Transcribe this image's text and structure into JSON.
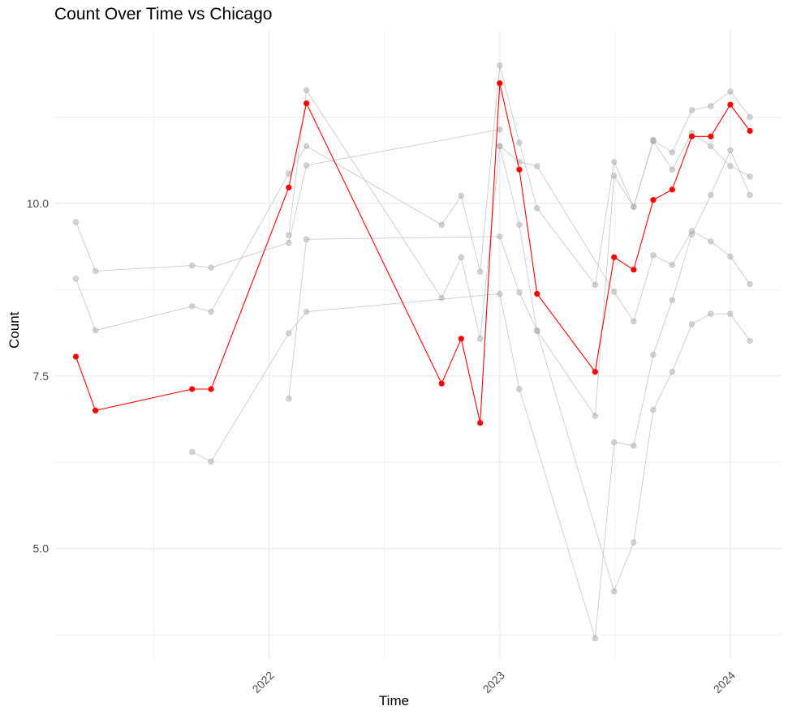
{
  "chart_data": {
    "type": "line",
    "title": "Count Over Time vs Chicago",
    "xlabel": "Time",
    "ylabel": "Count",
    "x_ticks": [
      {
        "date": "2022-01-01",
        "label": "2022"
      },
      {
        "date": "2023-01-01",
        "label": "2023"
      },
      {
        "date": "2024-01-01",
        "label": "2024"
      }
    ],
    "y_ticks": [
      5.0,
      7.5,
      10.0
    ],
    "y_tick_labels": [
      "5.0",
      "7.5",
      "10.0"
    ],
    "xlim": [
      "2021-01-26",
      "2024-03-22"
    ],
    "ylim": [
      3.4,
      12.5
    ],
    "grid": true,
    "colors": {
      "highlight": "#ff0000",
      "others": "#bdbdbd",
      "grid": "#ebebeb"
    },
    "highlight_series": {
      "values": [
        [
          "2021-03-01",
          7.78
        ],
        [
          "2021-04-01",
          7.0
        ],
        [
          "2021-09-01",
          7.31
        ],
        [
          "2021-10-01",
          7.31
        ],
        [
          "2022-02-01",
          10.23
        ],
        [
          "2022-03-01",
          11.45
        ],
        [
          "2022-10-01",
          7.39
        ],
        [
          "2022-11-01",
          8.04
        ],
        [
          "2022-12-01",
          6.82
        ],
        [
          "2023-01-01",
          11.74
        ],
        [
          "2023-02-01",
          10.49
        ],
        [
          "2023-03-01",
          8.69
        ],
        [
          "2023-06-01",
          7.56
        ],
        [
          "2023-07-01",
          9.22
        ],
        [
          "2023-08-01",
          9.04
        ],
        [
          "2023-09-01",
          10.05
        ],
        [
          "2023-10-01",
          10.2
        ],
        [
          "2023-11-01",
          10.97
        ],
        [
          "2023-12-01",
          10.97
        ],
        [
          "2024-01-01",
          11.43
        ],
        [
          "2024-02-01",
          11.05
        ]
      ]
    },
    "series": [
      {
        "values": [
          [
            "2021-03-01",
            9.73
          ],
          [
            "2021-04-01",
            9.02
          ],
          [
            "2021-09-01",
            9.1
          ],
          [
            "2021-10-01",
            9.07
          ],
          [
            "2022-02-01",
            9.43
          ],
          [
            "2022-03-01",
            10.55
          ],
          [
            "2023-01-01",
            11.07
          ]
        ]
      },
      {
        "values": [
          [
            "2021-03-01",
            8.91
          ],
          [
            "2021-04-01",
            8.16
          ],
          [
            "2021-09-01",
            8.51
          ],
          [
            "2021-10-01",
            8.43
          ],
          [
            "2022-02-01",
            10.43
          ],
          [
            "2022-03-01",
            10.83
          ],
          [
            "2022-10-01",
            9.69
          ],
          [
            "2022-11-01",
            10.11
          ],
          [
            "2022-12-01",
            9.01
          ],
          [
            "2023-01-01",
            12.0
          ],
          [
            "2023-02-01",
            10.88
          ],
          [
            "2023-03-01",
            9.93
          ],
          [
            "2023-06-01",
            8.82
          ],
          [
            "2023-07-01",
            10.6
          ],
          [
            "2023-08-01",
            9.95
          ],
          [
            "2023-09-01",
            10.92
          ]
        ]
      },
      {
        "values": [
          [
            "2021-09-01",
            6.4
          ],
          [
            "2021-10-01",
            6.26
          ],
          [
            "2022-02-01",
            8.12
          ],
          [
            "2022-03-01",
            8.43
          ],
          [
            "2023-01-01",
            8.69
          ],
          [
            "2023-02-01",
            7.31
          ],
          [
            "2023-06-01",
            3.7
          ],
          [
            "2023-07-01",
            6.54
          ],
          [
            "2023-08-01",
            6.49
          ],
          [
            "2023-09-01",
            7.81
          ],
          [
            "2023-10-01",
            8.6
          ],
          [
            "2023-11-01",
            9.55
          ],
          [
            "2023-12-01",
            10.12
          ],
          [
            "2024-01-01",
            10.77
          ],
          [
            "2024-02-01",
            10.12
          ]
        ]
      },
      {
        "values": [
          [
            "2022-02-01",
            7.17
          ],
          [
            "2022-03-01",
            9.48
          ],
          [
            "2023-01-01",
            9.52
          ],
          [
            "2023-02-01",
            8.71
          ],
          [
            "2023-03-01",
            8.16
          ],
          [
            "2023-06-01",
            6.92
          ],
          [
            "2023-07-01",
            10.4
          ],
          [
            "2023-08-01",
            9.95
          ],
          [
            "2023-09-01",
            10.9
          ],
          [
            "2023-10-01",
            10.49
          ],
          [
            "2023-11-01",
            11.02
          ],
          [
            "2023-12-01",
            10.83
          ],
          [
            "2024-01-01",
            10.54
          ],
          [
            "2024-02-01",
            10.39
          ]
        ]
      },
      {
        "values": [
          [
            "2022-02-01",
            9.54
          ],
          [
            "2022-03-01",
            11.64
          ],
          [
            "2022-10-01",
            8.63
          ],
          [
            "2022-11-01",
            9.22
          ],
          [
            "2022-12-01",
            8.04
          ],
          [
            "2023-01-01",
            10.83
          ],
          [
            "2023-02-01",
            9.69
          ],
          [
            "2023-03-01",
            8.15
          ],
          [
            "2023-07-01",
            4.38
          ],
          [
            "2023-08-01",
            5.09
          ],
          [
            "2023-09-01",
            7.01
          ],
          [
            "2023-10-01",
            7.56
          ],
          [
            "2023-11-01",
            8.25
          ],
          [
            "2023-12-01",
            8.4
          ],
          [
            "2024-01-01",
            8.4
          ],
          [
            "2024-02-01",
            8.01
          ]
        ]
      },
      {
        "values": [
          [
            "2023-01-01",
            10.83
          ],
          [
            "2023-02-01",
            10.6
          ],
          [
            "2023-03-01",
            10.54
          ],
          [
            "2023-07-01",
            8.72
          ],
          [
            "2023-08-01",
            8.29
          ],
          [
            "2023-09-01",
            9.25
          ],
          [
            "2023-10-01",
            9.11
          ],
          [
            "2023-11-01",
            9.6
          ],
          [
            "2023-12-01",
            9.45
          ],
          [
            "2024-01-01",
            9.23
          ],
          [
            "2024-02-01",
            8.83
          ]
        ]
      },
      {
        "values": [
          [
            "2023-09-01",
            10.91
          ],
          [
            "2023-10-01",
            10.74
          ],
          [
            "2023-11-01",
            11.35
          ],
          [
            "2023-12-01",
            11.41
          ],
          [
            "2024-01-01",
            11.62
          ],
          [
            "2024-02-01",
            11.25
          ]
        ]
      }
    ]
  }
}
